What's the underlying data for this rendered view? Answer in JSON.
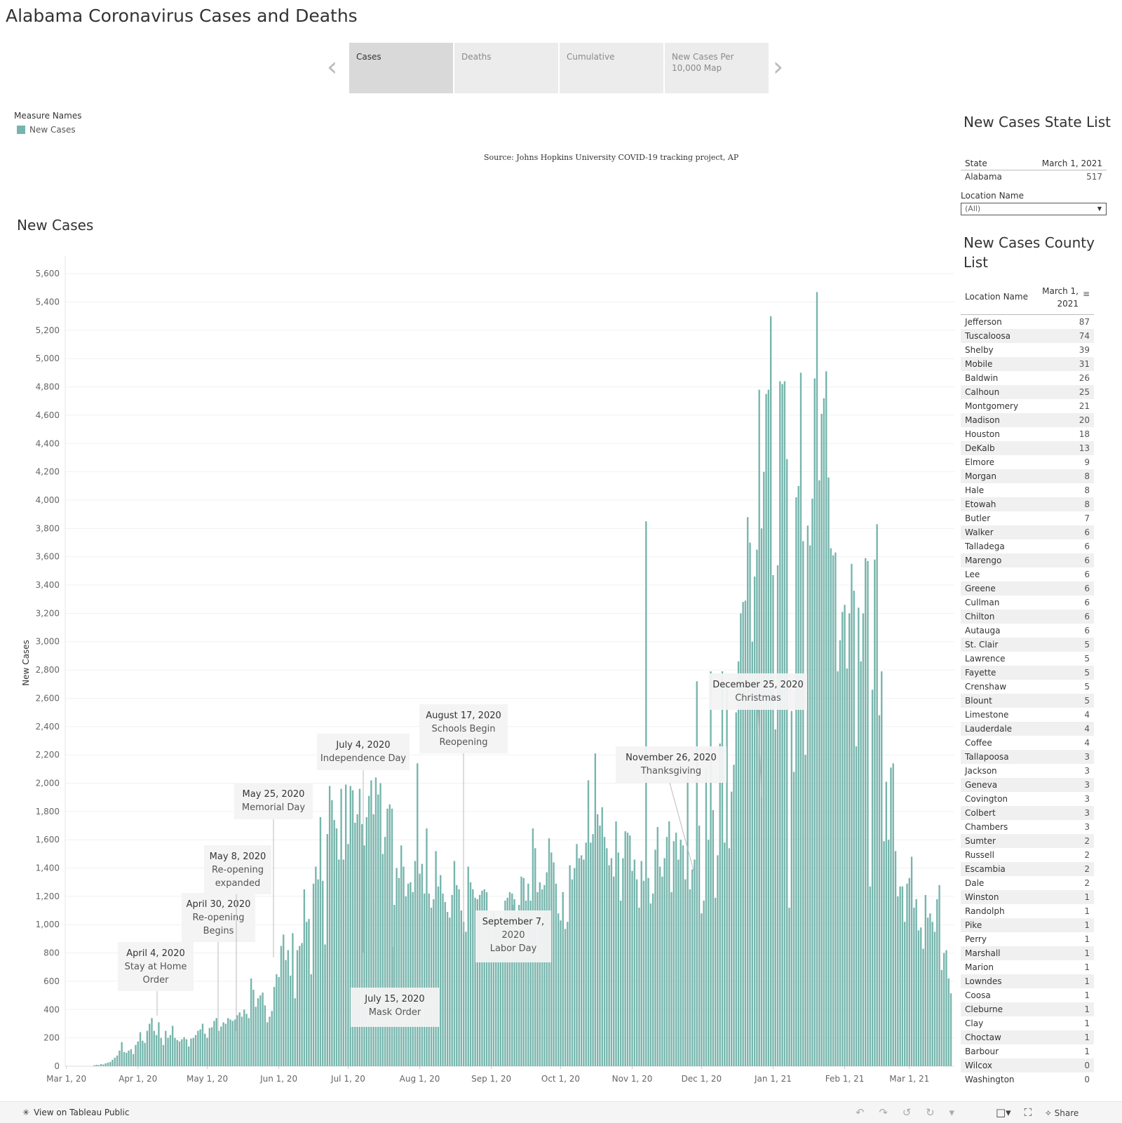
{
  "page": {
    "title": "Alabama Coronavirus Cases and Deaths"
  },
  "tabs": [
    {
      "label": "Cases"
    },
    {
      "label": "Deaths"
    },
    {
      "label": "Cumulative"
    },
    {
      "label": "New Cases Per 10,000 Map"
    }
  ],
  "legend": {
    "title": "Measure Names",
    "item": "New Cases",
    "color": "#76b5ac"
  },
  "source": "Source: Johns Hopkins University COVID-19 tracking project, AP",
  "state_list": {
    "title": "New Cases State List",
    "col_state": "State",
    "col_date": "March 1, 2021",
    "rows": [
      {
        "name": "Alabama",
        "value": "517"
      }
    ]
  },
  "location_filter": {
    "label": "Location Name",
    "value": "(All)"
  },
  "county_list": {
    "title_line1": "New Cases County",
    "title_line2": "List",
    "col_name": "Location Name",
    "col_date_line1": "March 1,",
    "col_date_line2": "2021",
    "rows": [
      {
        "name": "Jefferson",
        "value": "87"
      },
      {
        "name": "Tuscaloosa",
        "value": "74"
      },
      {
        "name": "Shelby",
        "value": "39"
      },
      {
        "name": "Mobile",
        "value": "31"
      },
      {
        "name": "Baldwin",
        "value": "26"
      },
      {
        "name": "Calhoun",
        "value": "25"
      },
      {
        "name": "Montgomery",
        "value": "21"
      },
      {
        "name": "Madison",
        "value": "20"
      },
      {
        "name": "Houston",
        "value": "18"
      },
      {
        "name": "DeKalb",
        "value": "13"
      },
      {
        "name": "Elmore",
        "value": "9"
      },
      {
        "name": "Morgan",
        "value": "8"
      },
      {
        "name": "Hale",
        "value": "8"
      },
      {
        "name": "Etowah",
        "value": "8"
      },
      {
        "name": "Butler",
        "value": "7"
      },
      {
        "name": "Walker",
        "value": "6"
      },
      {
        "name": "Talladega",
        "value": "6"
      },
      {
        "name": "Marengo",
        "value": "6"
      },
      {
        "name": "Lee",
        "value": "6"
      },
      {
        "name": "Greene",
        "value": "6"
      },
      {
        "name": "Cullman",
        "value": "6"
      },
      {
        "name": "Chilton",
        "value": "6"
      },
      {
        "name": "Autauga",
        "value": "6"
      },
      {
        "name": "St. Clair",
        "value": "5"
      },
      {
        "name": "Lawrence",
        "value": "5"
      },
      {
        "name": "Fayette",
        "value": "5"
      },
      {
        "name": "Crenshaw",
        "value": "5"
      },
      {
        "name": "Blount",
        "value": "5"
      },
      {
        "name": "Limestone",
        "value": "4"
      },
      {
        "name": "Lauderdale",
        "value": "4"
      },
      {
        "name": "Coffee",
        "value": "4"
      },
      {
        "name": "Tallapoosa",
        "value": "3"
      },
      {
        "name": "Jackson",
        "value": "3"
      },
      {
        "name": "Geneva",
        "value": "3"
      },
      {
        "name": "Covington",
        "value": "3"
      },
      {
        "name": "Colbert",
        "value": "3"
      },
      {
        "name": "Chambers",
        "value": "3"
      },
      {
        "name": "Sumter",
        "value": "2"
      },
      {
        "name": "Russell",
        "value": "2"
      },
      {
        "name": "Escambia",
        "value": "2"
      },
      {
        "name": "Dale",
        "value": "2"
      },
      {
        "name": "Winston",
        "value": "1"
      },
      {
        "name": "Randolph",
        "value": "1"
      },
      {
        "name": "Pike",
        "value": "1"
      },
      {
        "name": "Perry",
        "value": "1"
      },
      {
        "name": "Marshall",
        "value": "1"
      },
      {
        "name": "Marion",
        "value": "1"
      },
      {
        "name": "Lowndes",
        "value": "1"
      },
      {
        "name": "Coosa",
        "value": "1"
      },
      {
        "name": "Cleburne",
        "value": "1"
      },
      {
        "name": "Clay",
        "value": "1"
      },
      {
        "name": "Choctaw",
        "value": "1"
      },
      {
        "name": "Barbour",
        "value": "1"
      },
      {
        "name": "Wilcox",
        "value": "0"
      },
      {
        "name": "Washington",
        "value": "0"
      }
    ]
  },
  "footer": {
    "tableau_link": "View on Tableau Public",
    "share": "Share"
  },
  "chart_data": {
    "type": "bar",
    "title": "New Cases",
    "ylabel": "New Cases",
    "xlabel": "",
    "ylim": [
      0,
      5700
    ],
    "yticks": [
      0,
      200,
      400,
      600,
      800,
      1000,
      1200,
      1400,
      1600,
      1800,
      2000,
      2200,
      2400,
      2600,
      2800,
      3000,
      3200,
      3400,
      3600,
      3800,
      4000,
      4200,
      4400,
      4600,
      4800,
      5000,
      5200,
      5400,
      5600
    ],
    "start_date": "2020-03-01",
    "x_ticks": [
      {
        "label": "Mar 1, 20",
        "day": 0
      },
      {
        "label": "Apr 1, 20",
        "day": 31
      },
      {
        "label": "May 1, 20",
        "day": 61
      },
      {
        "label": "Jun 1, 20",
        "day": 92
      },
      {
        "label": "Jul 1, 20",
        "day": 122
      },
      {
        "label": "Aug 1, 20",
        "day": 153
      },
      {
        "label": "Sep 1, 20",
        "day": 184
      },
      {
        "label": "Oct 1, 20",
        "day": 214
      },
      {
        "label": "Nov 1, 20",
        "day": 245
      },
      {
        "label": "Dec 1, 20",
        "day": 275
      },
      {
        "label": "Jan 1, 21",
        "day": 306
      },
      {
        "label": "Feb 1, 21",
        "day": 337
      },
      {
        "label": "Mar 1, 21",
        "day": 365
      }
    ],
    "color": "#76b5ac",
    "values": [
      0,
      0,
      0,
      0,
      0,
      0,
      0,
      0,
      0,
      0,
      0,
      0,
      6,
      10,
      8,
      15,
      12,
      20,
      25,
      30,
      45,
      60,
      75,
      110,
      170,
      100,
      95,
      110,
      120,
      85,
      150,
      175,
      240,
      180,
      165,
      250,
      300,
      340,
      250,
      220,
      310,
      200,
      150,
      250,
      200,
      220,
      285,
      200,
      185,
      175,
      190,
      205,
      190,
      140,
      195,
      200,
      220,
      250,
      260,
      300,
      230,
      200,
      270,
      275,
      320,
      340,
      250,
      280,
      310,
      300,
      340,
      330,
      320,
      330,
      360,
      380,
      350,
      400,
      370,
      340,
      620,
      540,
      420,
      480,
      500,
      520,
      430,
      310,
      350,
      390,
      560,
      650,
      630,
      850,
      930,
      750,
      820,
      640,
      940,
      480,
      820,
      850,
      870,
      1250,
      1020,
      1040,
      650,
      1290,
      1410,
      1320,
      1760,
      1310,
      860,
      1640,
      1980,
      1880,
      1740,
      1680,
      1460,
      1960,
      1460,
      1990,
      1570,
      1980,
      1950,
      1720,
      1780,
      1960,
      1710,
      1560,
      1760,
      1910,
      2020,
      1780,
      2040,
      1920,
      2000,
      1500,
      1620,
      1820,
      1850,
      1820,
      1140,
      1400,
      1330,
      1560,
      1410,
      1200,
      1290,
      1300,
      1230,
      1450,
      2140,
      1360,
      1430,
      1220,
      1680,
      1220,
      1120,
      1180,
      1520,
      1270,
      1350,
      1220,
      1160,
      1090,
      1050,
      1210,
      1450,
      1280,
      1250,
      1100,
      1020,
      950,
      1410,
      1300,
      1250,
      1190,
      1180,
      1210,
      1240,
      1250,
      1230,
      1040,
      980,
      1100,
      1010,
      990,
      1030,
      990,
      1170,
      1190,
      1230,
      1220,
      1180,
      1090,
      1140,
      1340,
      1330,
      1170,
      1290,
      1170,
      1680,
      1540,
      1230,
      1300,
      1250,
      1280,
      1370,
      1610,
      1510,
      1440,
      1290,
      1080,
      1030,
      1230,
      970,
      1020,
      1420,
      1320,
      1400,
      1570,
      1470,
      1490,
      1460,
      1580,
      2020,
      1580,
      1640,
      2210,
      1780,
      1700,
      1830,
      1620,
      1540,
      1420,
      1470,
      1340,
      1730,
      1510,
      1170,
      1470,
      1660,
      1650,
      1630,
      1380,
      1460,
      1320,
      1120,
      1450,
      1310,
      3850,
      1330,
      1150,
      1220,
      1530,
      1690,
      1410,
      1340,
      1470,
      1620,
      1730,
      1230,
      1590,
      1650,
      1460,
      1600,
      1560,
      1320,
      2060,
      1250,
      1390,
      1460,
      2720,
      1700,
      1080,
      1170,
      2100,
      1600,
      2790,
      1810,
      1190,
      1490,
      2280,
      2790,
      1580,
      2700,
      1540,
      1940,
      2130,
      2500,
      2860,
      3200,
      3280,
      3290,
      3880,
      3700,
      3000,
      3460,
      3650,
      4780,
      3800,
      4200,
      4750,
      4780,
      5300,
      3470,
      2380,
      3540,
      4840,
      4820,
      4840,
      4290,
      1120,
      2510,
      2080,
      4020,
      4100,
      4900,
      3710,
      2200,
      3820,
      3680,
      4010,
      4860,
      5470,
      4140,
      4610,
      4720,
      4910,
      4160,
      3660,
      3610,
      3630,
      2790,
      3010,
      3210,
      3260,
      2810,
      3200,
      3550,
      3360,
      2260,
      3240,
      2860,
      3200,
      3590,
      3570,
      1270,
      2660,
      3580,
      3830,
      2480,
      2790,
      1590,
      2010,
      1600,
      2110,
      2140,
      1520,
      1200,
      1270,
      1270,
      1020,
      1290,
      1330,
      1480,
      1120,
      1180,
      960,
      980,
      830,
      1210,
      1050,
      1080,
      1020,
      950,
      1180,
      1280,
      680,
      800,
      820,
      620,
      515
    ]
  },
  "annotations": [
    {
      "line1": "April 4, 2020",
      "line2": "Stay at Home",
      "line3": "Order"
    },
    {
      "line1": "April 30, 2020",
      "line2": "Re-opening",
      "line3": "Begins"
    },
    {
      "line1": "May 8, 2020",
      "line2": "Re-opening",
      "line3": "expanded"
    },
    {
      "line1": "May 25, 2020",
      "line2": "Memorial Day",
      "line3": ""
    },
    {
      "line1": "July 4, 2020",
      "line2": "Independence Day",
      "line3": ""
    },
    {
      "line1": "July 15, 2020",
      "line2": "Mask Order",
      "line3": ""
    },
    {
      "line1": "August 17, 2020",
      "line2": "Schools Begin",
      "line3": "Reopening"
    },
    {
      "line1": "September 7,",
      "line2": "2020",
      "line3": "Labor Day"
    },
    {
      "line1": "November 26, 2020",
      "line2": "Thanksgiving",
      "line3": ""
    },
    {
      "line1": "December 25, 2020",
      "line2": "Christmas",
      "line3": ""
    }
  ]
}
